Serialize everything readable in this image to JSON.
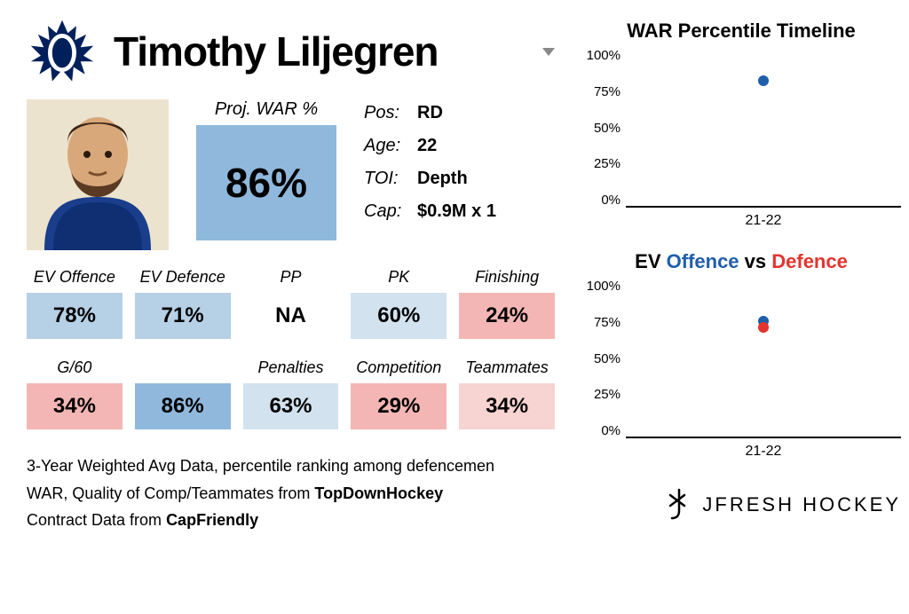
{
  "player": {
    "name": "Timothy Liljegren",
    "team_logo_label": "Toronto Maple Leafs logo",
    "info": [
      {
        "key": "Pos:",
        "val": "RD"
      },
      {
        "key": "Age:",
        "val": "22"
      },
      {
        "key": "TOI:",
        "val": "Depth"
      },
      {
        "key": "Cap:",
        "val": "$0.9M x 1"
      }
    ],
    "proj_war": {
      "label": "Proj. WAR %",
      "value": "86%",
      "bg": "#8fb8dc"
    }
  },
  "colors": {
    "blue_strong": "#8fb8dc",
    "blue_mid": "#b6d0e6",
    "blue_light": "#d2e2ef",
    "blue_vlight": "#e0ebf4",
    "red_mid": "#f3b6b4",
    "red_light": "#f7d3d2",
    "point_blue": "#1f5faa",
    "point_red": "#e3342f"
  },
  "stats_row1": [
    {
      "label": "EV Offence",
      "value": "78%",
      "bg": "#b6d0e6"
    },
    {
      "label": "EV Defence",
      "value": "71%",
      "bg": "#b6d0e6"
    },
    {
      "label": "PP",
      "value": "NA",
      "bg": "#ffffff"
    },
    {
      "label": "PK",
      "value": "60%",
      "bg": "#d2e2ef"
    },
    {
      "label": "Finishing",
      "value": "24%",
      "bg": "#f3b6b4"
    }
  ],
  "stats_row2": [
    {
      "label": "G/60",
      "value": "34%",
      "bg": "#f3b6b4"
    },
    {
      "label": "",
      "value": "86%",
      "bg": "#8fb8dc"
    },
    {
      "label": "Penalties",
      "value": "63%",
      "bg": "#d2e2ef"
    },
    {
      "label": "Competition",
      "value": "29%",
      "bg": "#f3b6b4"
    },
    {
      "label": "Teammates",
      "value": "34%",
      "bg": "#f7d3d2"
    }
  ],
  "footer": {
    "line1_a": "3-Year Weighted Avg Data, percentile ranking among defencemen",
    "line2_a": "WAR, Quality of Comp/Teammates from ",
    "line2_b": "TopDownHockey",
    "line3_a": "Contract Data from ",
    "line3_b": "CapFriendly"
  },
  "charts": {
    "timeline": {
      "title": "WAR Percentile Timeline",
      "yticks": [
        "100%",
        "75%",
        "50%",
        "25%",
        "0%"
      ],
      "xlabel": "21-22",
      "points": [
        {
          "x": 50,
          "y": 79,
          "color": "#1f5faa"
        }
      ]
    },
    "evod": {
      "title_prefix": "EV ",
      "title_off": "Offence",
      "title_mid": " vs ",
      "title_def": "Defence",
      "yticks": [
        "100%",
        "75%",
        "50%",
        "25%",
        "0%"
      ],
      "xlabel": "21-22",
      "points": [
        {
          "x": 50,
          "y": 73,
          "color": "#1f5faa"
        },
        {
          "x": 50,
          "y": 69,
          "color": "#e3342f"
        }
      ]
    }
  },
  "brand": "JFRESH HOCKEY"
}
